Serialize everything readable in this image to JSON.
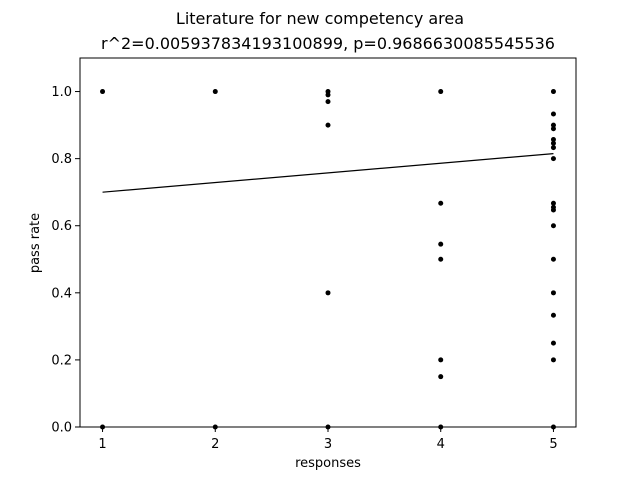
{
  "chart_data": {
    "type": "scatter",
    "title": "Literature for new competency area",
    "subtitle": "r^2=0.005937834193100899, p=0.9686630085545536",
    "xlabel": "responses",
    "ylabel": "pass rate",
    "xlim": [
      0.8,
      5.2
    ],
    "ylim": [
      0.0,
      1.1
    ],
    "xticks": [
      "1",
      "2",
      "3",
      "4",
      "5"
    ],
    "yticks": [
      "0.0",
      "0.2",
      "0.4",
      "0.6",
      "0.8",
      "1.0"
    ],
    "grid": false,
    "points": [
      {
        "x": 1,
        "y": 1.0
      },
      {
        "x": 1,
        "y": 0.0
      },
      {
        "x": 2,
        "y": 1.0
      },
      {
        "x": 2,
        "y": 0.0
      },
      {
        "x": 3,
        "y": 1.0
      },
      {
        "x": 3,
        "y": 0.99
      },
      {
        "x": 3,
        "y": 0.97
      },
      {
        "x": 3,
        "y": 0.9
      },
      {
        "x": 3,
        "y": 0.4
      },
      {
        "x": 3,
        "y": 0.0
      },
      {
        "x": 4,
        "y": 1.0
      },
      {
        "x": 4,
        "y": 0.667
      },
      {
        "x": 4,
        "y": 0.545
      },
      {
        "x": 4,
        "y": 0.5
      },
      {
        "x": 4,
        "y": 0.2
      },
      {
        "x": 4,
        "y": 0.15
      },
      {
        "x": 4,
        "y": 0.0
      },
      {
        "x": 5,
        "y": 1.0
      },
      {
        "x": 5,
        "y": 0.933
      },
      {
        "x": 5,
        "y": 0.9
      },
      {
        "x": 5,
        "y": 0.889
      },
      {
        "x": 5,
        "y": 0.857
      },
      {
        "x": 5,
        "y": 0.846
      },
      {
        "x": 5,
        "y": 0.833
      },
      {
        "x": 5,
        "y": 0.8
      },
      {
        "x": 5,
        "y": 0.667
      },
      {
        "x": 5,
        "y": 0.655
      },
      {
        "x": 5,
        "y": 0.647
      },
      {
        "x": 5,
        "y": 0.6
      },
      {
        "x": 5,
        "y": 0.5
      },
      {
        "x": 5,
        "y": 0.4
      },
      {
        "x": 5,
        "y": 0.333
      },
      {
        "x": 5,
        "y": 0.25
      },
      {
        "x": 5,
        "y": 0.2
      },
      {
        "x": 5,
        "y": 0.0
      }
    ],
    "fit_line": {
      "x": [
        1,
        5
      ],
      "y": [
        0.7,
        0.815
      ]
    },
    "colors": {
      "points": "#000000",
      "line": "#000000"
    }
  }
}
